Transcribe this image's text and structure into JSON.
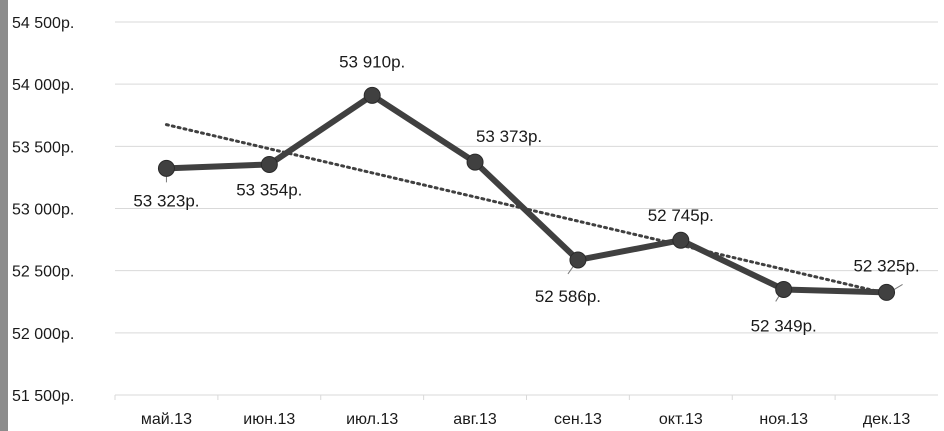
{
  "chart_data": {
    "type": "line",
    "title": "",
    "xlabel": "",
    "ylabel": "",
    "categories": [
      "май.13",
      "июн.13",
      "июл.13",
      "авг.13",
      "сен.13",
      "окт.13",
      "ноя.13",
      "дек.13"
    ],
    "series": [
      {
        "values": [
          53323,
          53354,
          53910,
          53373,
          52586,
          52745,
          52349,
          52325
        ],
        "labels": [
          "53 323р.",
          "53 354р.",
          "53 910р.",
          "53 373р.",
          "52 586р.",
          "52 745р.",
          "52 349р.",
          "52 325р."
        ],
        "color": "#404040"
      }
    ],
    "trendline": {
      "type": "linear",
      "style": "dotted",
      "color": "#404040"
    },
    "ylim": [
      51500,
      54500
    ],
    "yticks": [
      51500,
      52000,
      52500,
      53000,
      53500,
      54000,
      54500
    ],
    "ytick_labels": [
      "51 500р.",
      "52 000р.",
      "52 500р.",
      "53 000р.",
      "53 500р.",
      "54 000р.",
      "54 500р."
    ],
    "grid": true,
    "gridline_color": "#d9d9d9",
    "legend": "none"
  }
}
